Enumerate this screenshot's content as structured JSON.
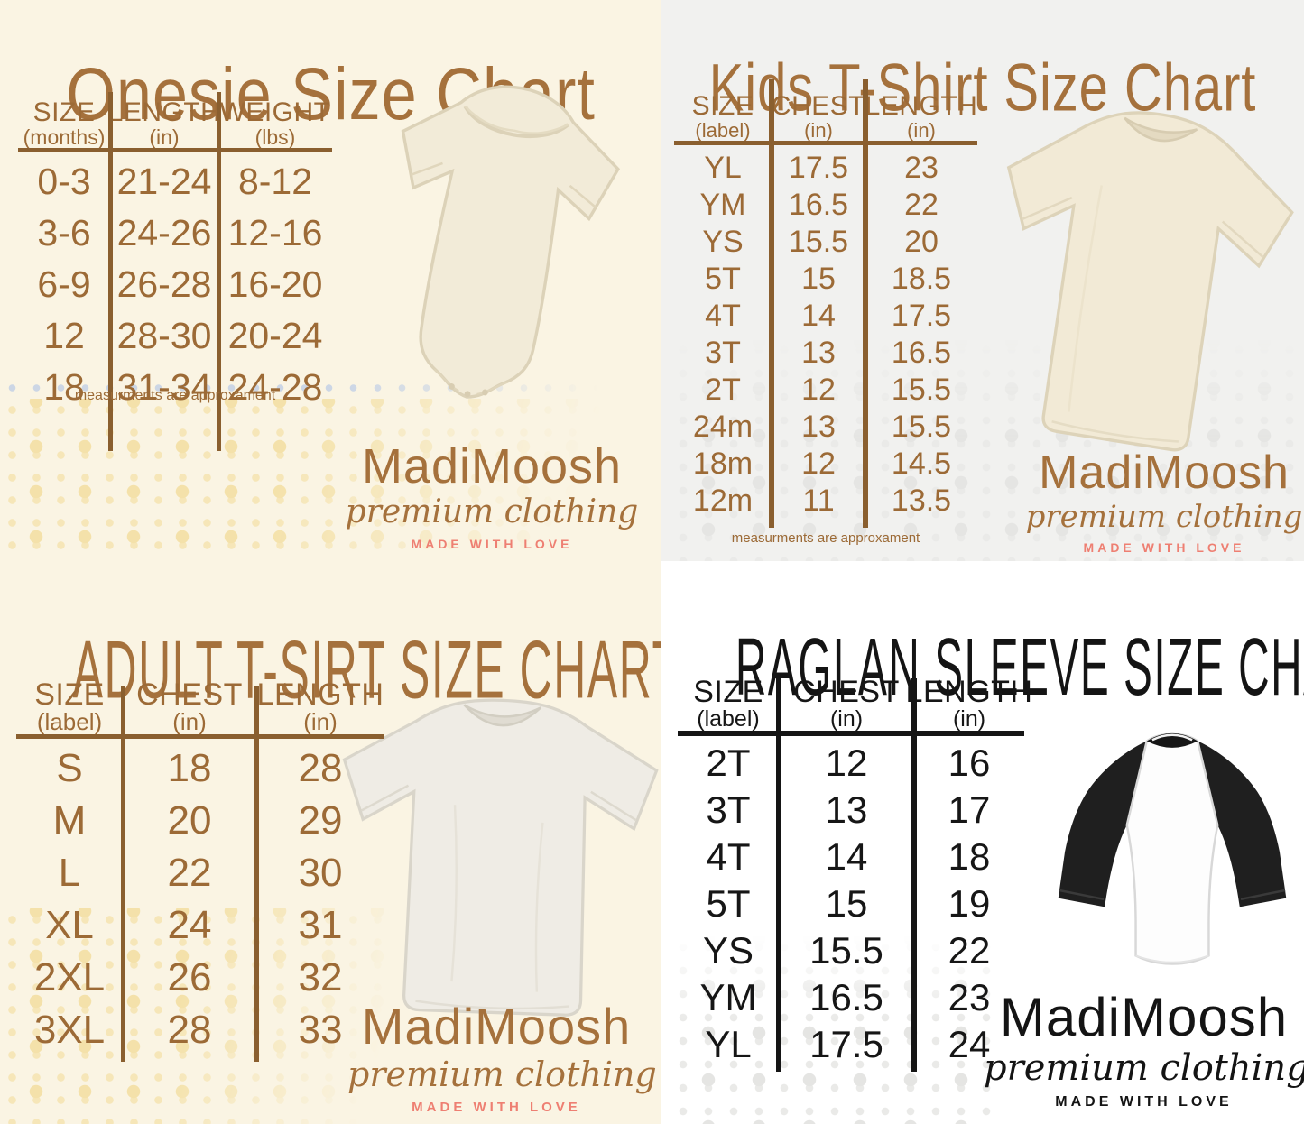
{
  "poster": {
    "brand": {
      "name": "MadiMoosh",
      "tagline": "premium clothing",
      "slogan": "MADE WITH LOVE"
    }
  },
  "colors": {
    "brown_text": "#a5713c",
    "brown_line": "#8a5f2f",
    "black_text": "#141414",
    "salmon_slogan": "#ee7f72",
    "cream_background": "#faf4e3",
    "gray_background": "#f1f1ef",
    "white_background": "#ffffff",
    "yellow_dot": "#f3dfa3",
    "gray_dot": "#e4e4e2",
    "blue_dot": "#ccd6e5"
  },
  "charts": [
    {
      "id": "onesie",
      "title": "Onesie Size Chart",
      "columns": [
        {
          "label": "SIZE",
          "sub": "(months)"
        },
        {
          "label": "LENGTH",
          "sub": "(in)"
        },
        {
          "label": "WEIGHT",
          "sub": "(lbs)"
        }
      ],
      "rows": [
        [
          "0-3",
          "21-24",
          "8-12"
        ],
        [
          "3-6",
          "24-26",
          "12-16"
        ],
        [
          "6-9",
          "26-28",
          "16-20"
        ],
        [
          "12",
          "28-30",
          "20-24"
        ],
        [
          "18",
          "31-34",
          "24-28"
        ]
      ],
      "note": "measurments are approxament",
      "garment": "onesie"
    },
    {
      "id": "kids-tshirt",
      "title": "Kids T-Shirt Size Chart",
      "columns": [
        {
          "label": "SIZE",
          "sub": "(label)"
        },
        {
          "label": "CHEST",
          "sub": "(in)"
        },
        {
          "label": "LENGTH",
          "sub": "(in)"
        }
      ],
      "rows": [
        [
          "YL",
          "17.5",
          "23"
        ],
        [
          "YM",
          "16.5",
          "22"
        ],
        [
          "YS",
          "15.5",
          "20"
        ],
        [
          "5T",
          "15",
          "18.5"
        ],
        [
          "4T",
          "14",
          "17.5"
        ],
        [
          "3T",
          "13",
          "16.5"
        ],
        [
          "2T",
          "12",
          "15.5"
        ],
        [
          "24m",
          "13",
          "15.5"
        ],
        [
          "18m",
          "12",
          "14.5"
        ],
        [
          "12m",
          "11",
          "13.5"
        ]
      ],
      "note": "measurments are approxament",
      "garment": "kids t-shirt"
    },
    {
      "id": "adult-tshirt",
      "title": "ADULT T-SIRT SIZE CHART",
      "columns": [
        {
          "label": "SIZE",
          "sub": "(label)"
        },
        {
          "label": "CHEST",
          "sub": "(in)"
        },
        {
          "label": "LENGTH",
          "sub": "(in)"
        }
      ],
      "rows": [
        [
          "S",
          "18",
          "28"
        ],
        [
          "M",
          "20",
          "29"
        ],
        [
          "L",
          "22",
          "30"
        ],
        [
          "XL",
          "24",
          "31"
        ],
        [
          "2XL",
          "26",
          "32"
        ],
        [
          "3XL",
          "28",
          "33"
        ]
      ],
      "garment": "adult t-shirt"
    },
    {
      "id": "raglan",
      "title": "RAGLAN SLEEVE SIZE CHART",
      "columns": [
        {
          "label": "SIZE",
          "sub": "(label)"
        },
        {
          "label": "CHEST",
          "sub": "(in)"
        },
        {
          "label": "LENGTH",
          "sub": "(in)"
        }
      ],
      "rows": [
        [
          "2T",
          "12",
          "16"
        ],
        [
          "3T",
          "13",
          "17"
        ],
        [
          "4T",
          "14",
          "18"
        ],
        [
          "5T",
          "15",
          "19"
        ],
        [
          "YS",
          "15.5",
          "22"
        ],
        [
          "YM",
          "16.5",
          "23"
        ],
        [
          "YL",
          "17.5",
          "24"
        ]
      ],
      "garment": "raglan 3/4 sleeve shirt"
    }
  ],
  "chart_data": [
    {
      "type": "table",
      "title": "Onesie Size Chart",
      "columns": [
        "SIZE (months)",
        "LENGTH (in)",
        "WEIGHT (lbs)"
      ],
      "rows": [
        [
          "0-3",
          "21-24",
          "8-12"
        ],
        [
          "3-6",
          "24-26",
          "12-16"
        ],
        [
          "6-9",
          "26-28",
          "16-20"
        ],
        [
          "12",
          "28-30",
          "20-24"
        ],
        [
          "18",
          "31-34",
          "24-28"
        ]
      ],
      "footnote": "measurments are approxament"
    },
    {
      "type": "table",
      "title": "Kids T-Shirt Size Chart",
      "columns": [
        "SIZE (label)",
        "CHEST (in)",
        "LENGTH (in)"
      ],
      "rows": [
        [
          "YL",
          "17.5",
          "23"
        ],
        [
          "YM",
          "16.5",
          "22"
        ],
        [
          "YS",
          "15.5",
          "20"
        ],
        [
          "5T",
          "15",
          "18.5"
        ],
        [
          "4T",
          "14",
          "17.5"
        ],
        [
          "3T",
          "13",
          "16.5"
        ],
        [
          "2T",
          "12",
          "15.5"
        ],
        [
          "24m",
          "13",
          "15.5"
        ],
        [
          "18m",
          "12",
          "14.5"
        ],
        [
          "12m",
          "11",
          "13.5"
        ]
      ],
      "footnote": "measurments are approxament"
    },
    {
      "type": "table",
      "title": "ADULT T-SIRT SIZE CHART",
      "columns": [
        "SIZE (label)",
        "CHEST (in)",
        "LENGTH (in)"
      ],
      "rows": [
        [
          "S",
          "18",
          "28"
        ],
        [
          "M",
          "20",
          "29"
        ],
        [
          "L",
          "22",
          "30"
        ],
        [
          "XL",
          "24",
          "31"
        ],
        [
          "2XL",
          "26",
          "32"
        ],
        [
          "3XL",
          "28",
          "33"
        ]
      ]
    },
    {
      "type": "table",
      "title": "RAGLAN SLEEVE SIZE CHART",
      "columns": [
        "SIZE (label)",
        "CHEST (in)",
        "LENGTH (in)"
      ],
      "rows": [
        [
          "2T",
          "12",
          "16"
        ],
        [
          "3T",
          "13",
          "17"
        ],
        [
          "4T",
          "14",
          "18"
        ],
        [
          "5T",
          "15",
          "19"
        ],
        [
          "YS",
          "15.5",
          "22"
        ],
        [
          "YM",
          "16.5",
          "23"
        ],
        [
          "YL",
          "17.5",
          "24"
        ]
      ]
    }
  ]
}
